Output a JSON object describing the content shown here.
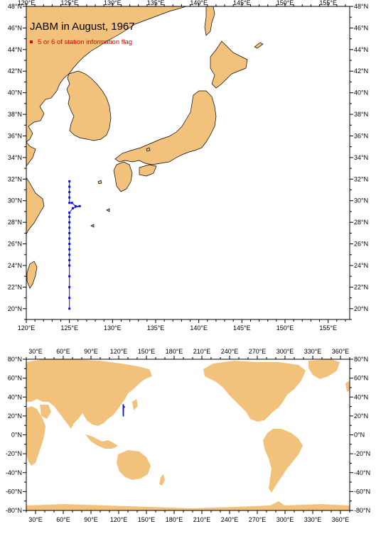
{
  "title": "JABM in August, 1967",
  "legend": {
    "label": "5 or 6 of station information flag",
    "marker_color": "#e00000"
  },
  "colors": {
    "land": "#f2c27c",
    "sea": "#ffffff",
    "track": "#1010d0"
  },
  "top_map": {
    "lon_labels": [
      "120°E",
      "125°E",
      "130°E",
      "135°E",
      "140°E",
      "145°E",
      "150°E",
      "155°E"
    ],
    "lat_labels": [
      "48°N",
      "46°N",
      "44°N",
      "42°N",
      "40°N",
      "38°N",
      "36°N",
      "34°N",
      "32°N",
      "30°N",
      "28°N",
      "26°N",
      "24°N",
      "22°N",
      "20°N"
    ]
  },
  "bottom_map": {
    "lon_labels": [
      "30°E",
      "60°E",
      "90°E",
      "120°E",
      "150°E",
      "180°E",
      "210°E",
      "240°E",
      "270°E",
      "300°E",
      "330°E",
      "360°E"
    ],
    "lat_labels": [
      "80°N",
      "60°N",
      "40°N",
      "20°N",
      "0°N",
      "-20°N",
      "-40°N",
      "-60°N",
      "-80°N"
    ]
  },
  "chart_data": {
    "type": "scatter",
    "title": "JABM in August, 1967",
    "series": [
      {
        "name": "5 or 6 of station information flag",
        "points": [
          {
            "lon": 125.0,
            "lat": 31.8
          },
          {
            "lon": 125.0,
            "lat": 31.3
          },
          {
            "lon": 125.0,
            "lat": 30.8
          },
          {
            "lon": 125.0,
            "lat": 30.3
          },
          {
            "lon": 125.0,
            "lat": 29.8
          },
          {
            "lon": 125.3,
            "lat": 29.8
          },
          {
            "lon": 125.7,
            "lat": 29.5
          },
          {
            "lon": 126.2,
            "lat": 29.5
          },
          {
            "lon": 125.4,
            "lat": 29.3
          },
          {
            "lon": 125.0,
            "lat": 28.9
          },
          {
            "lon": 125.0,
            "lat": 28.5
          },
          {
            "lon": 125.0,
            "lat": 28.0
          },
          {
            "lon": 125.0,
            "lat": 27.5
          },
          {
            "lon": 125.0,
            "lat": 27.0
          },
          {
            "lon": 125.0,
            "lat": 26.5
          },
          {
            "lon": 125.0,
            "lat": 26.0
          },
          {
            "lon": 125.0,
            "lat": 25.5
          },
          {
            "lon": 125.0,
            "lat": 25.0
          },
          {
            "lon": 125.0,
            "lat": 24.5
          },
          {
            "lon": 125.0,
            "lat": 24.0
          },
          {
            "lon": 125.0,
            "lat": 23.0
          },
          {
            "lon": 125.0,
            "lat": 22.0
          },
          {
            "lon": 125.0,
            "lat": 21.0
          },
          {
            "lon": 125.0,
            "lat": 20.0
          }
        ]
      }
    ],
    "top_extent": {
      "lon": [
        120,
        157.5
      ],
      "lat": [
        19,
        48
      ]
    },
    "bottom_extent": {
      "lon": [
        20,
        370
      ],
      "lat": [
        -80,
        80
      ]
    }
  }
}
